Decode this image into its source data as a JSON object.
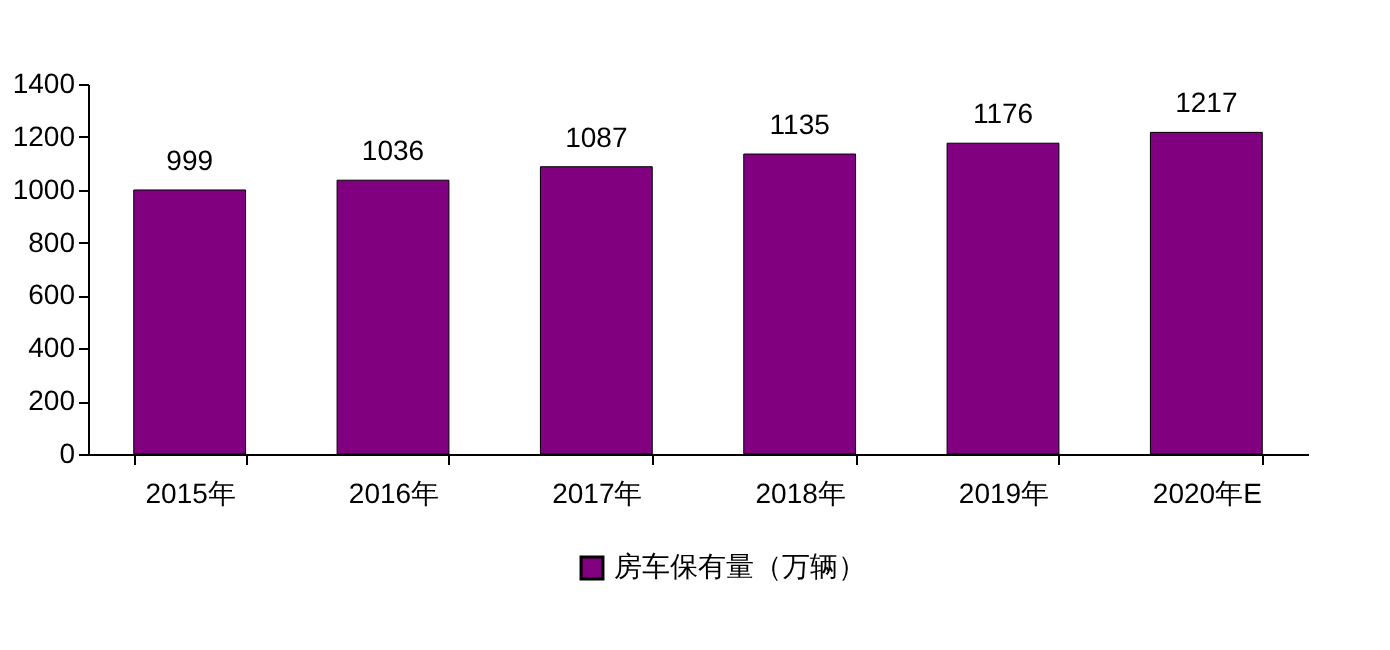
{
  "chart_data": {
    "type": "bar",
    "categories": [
      "2015年",
      "2016年",
      "2017年",
      "2018年",
      "2019年",
      "2020年E"
    ],
    "series": [
      {
        "name": "房车保有量（万辆）",
        "color": "#800080",
        "values": [
          999,
          1036,
          1087,
          1135,
          1176,
          1217
        ]
      }
    ],
    "ylim": [
      0,
      1400
    ],
    "yticks": [
      0,
      200,
      400,
      600,
      800,
      1000,
      1200,
      1400
    ],
    "data_labels": true,
    "grid": false,
    "legend": "bottom"
  }
}
